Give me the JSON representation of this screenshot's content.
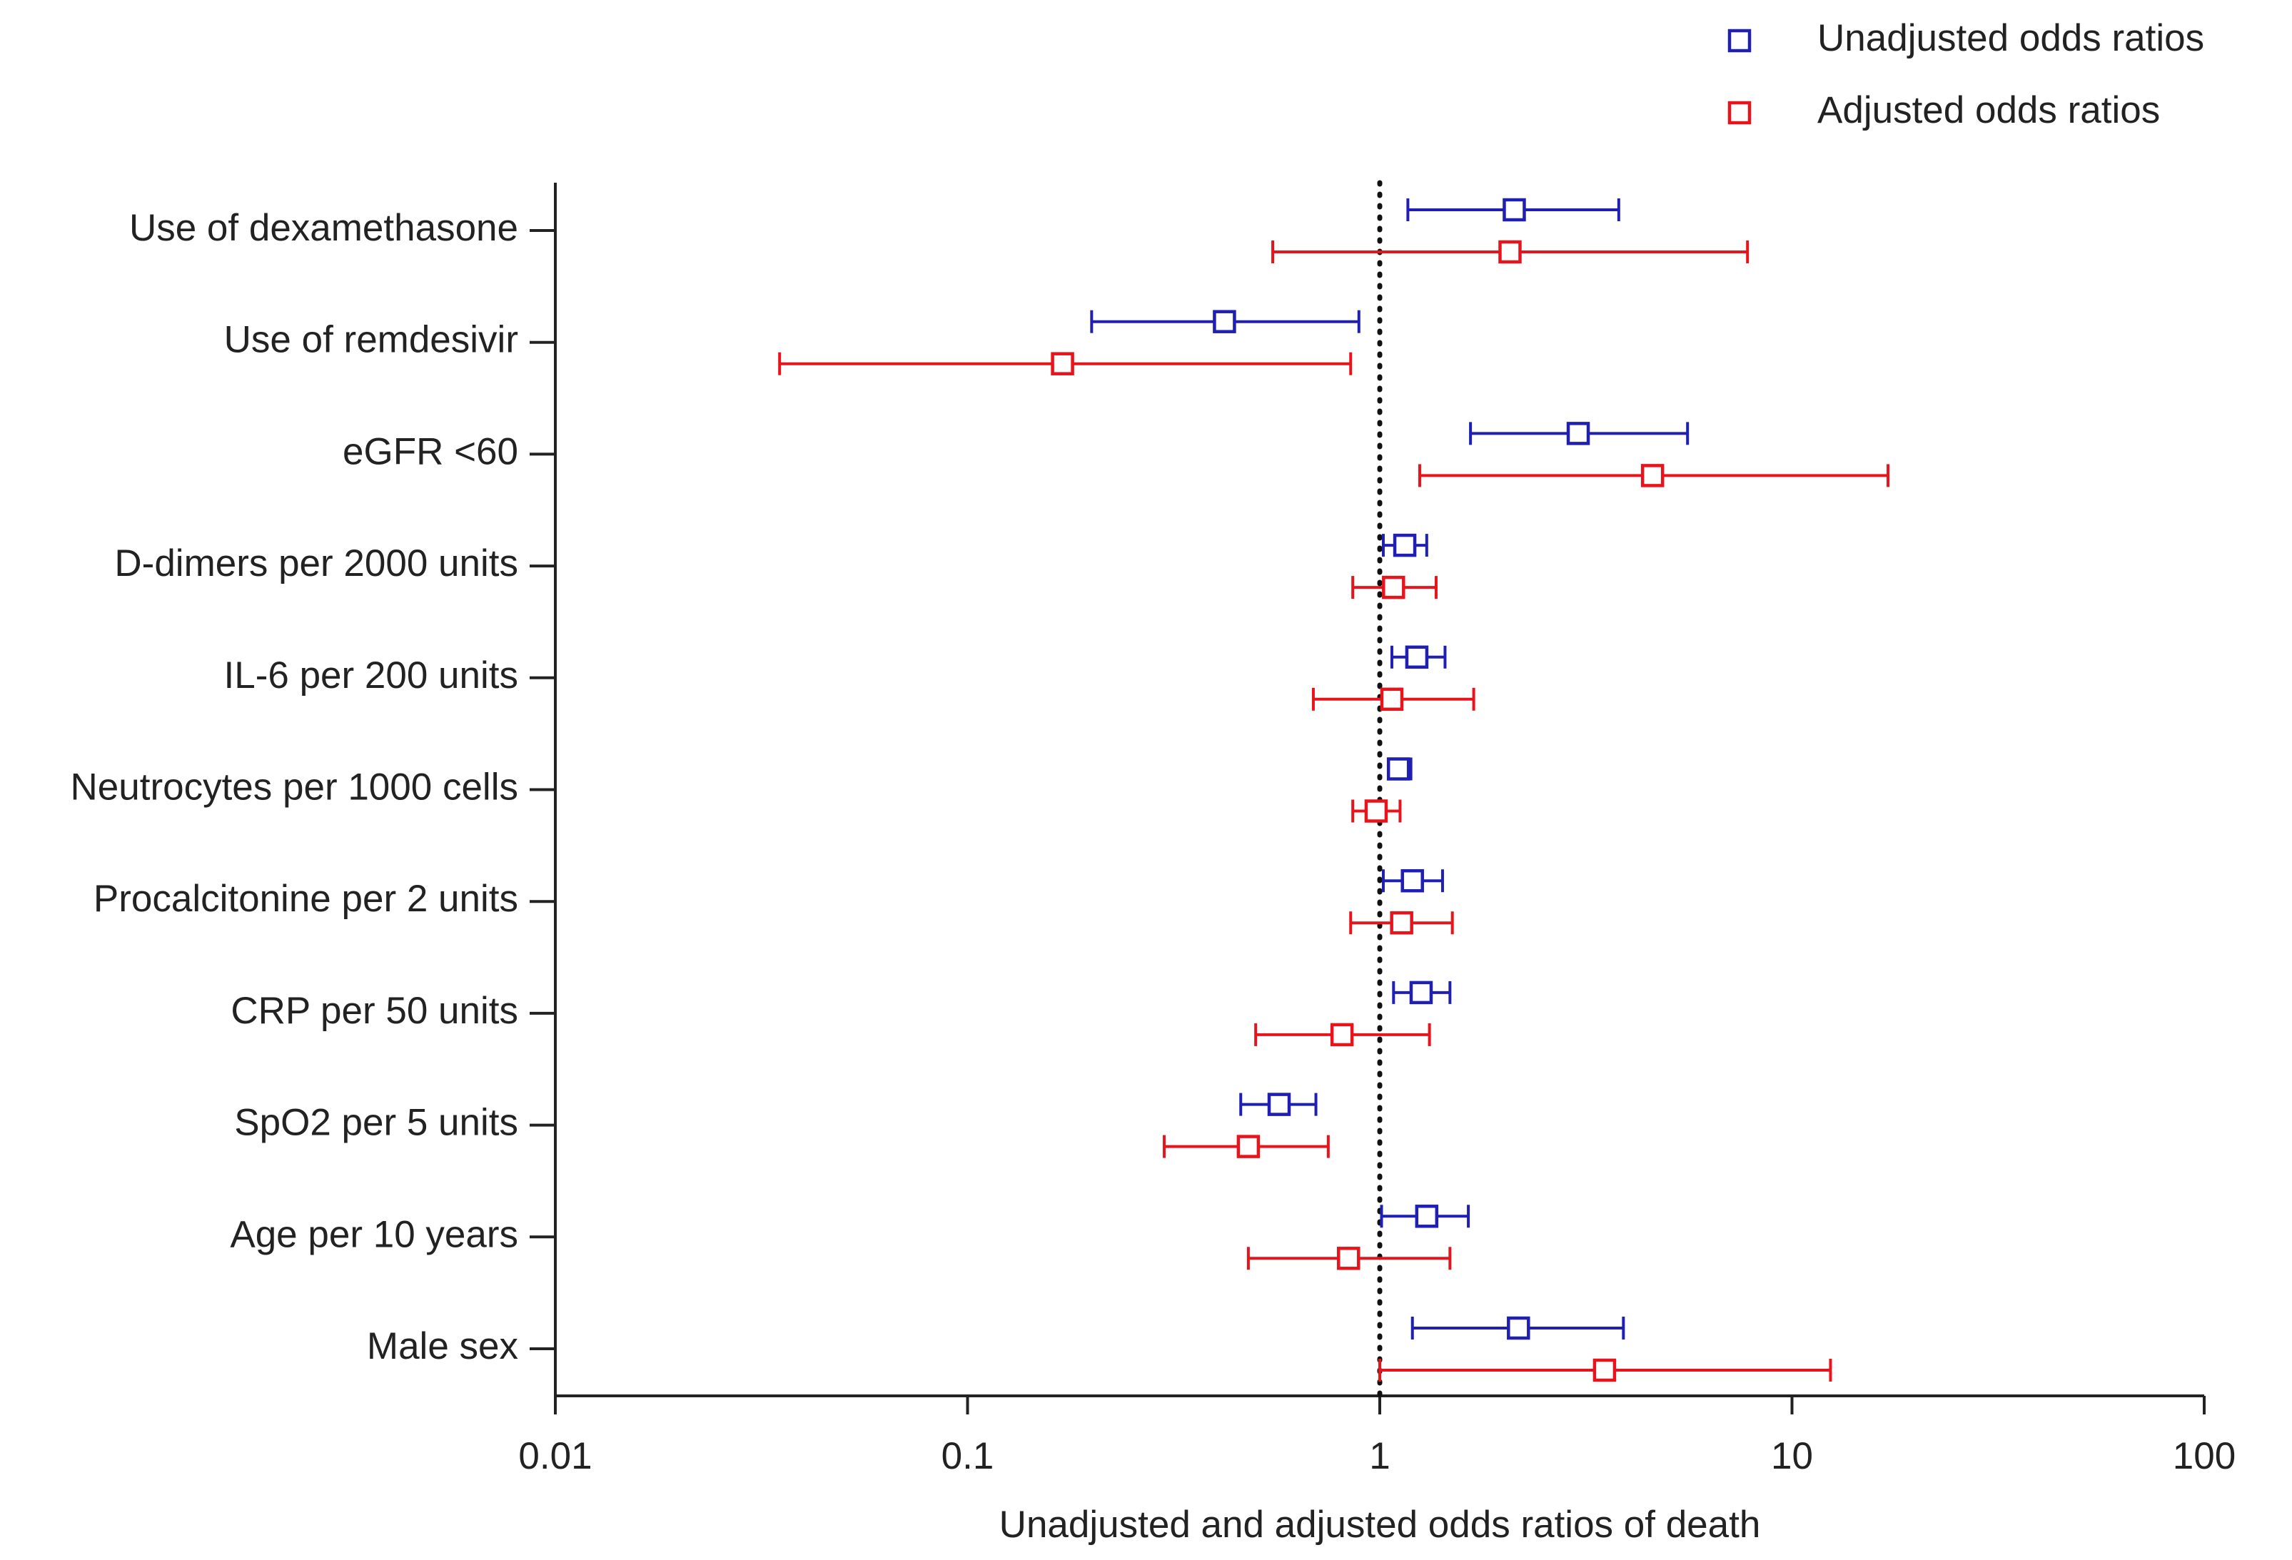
{
  "chart_data": {
    "type": "forest",
    "x_label": "Unadjusted and adjusted odds ratios of death",
    "categories": [
      "Use of dexamethasone",
      "Use of remdesivir",
      "eGFR <60",
      "D-dimers per 2000 units",
      "IL-6  per 200 units",
      "Neutrocytes per 1000 cells",
      "Procalcitonine per 2 units",
      "CRP per 50 units",
      "SpO2 per 5 units",
      "Age per 10 years",
      "Male sex"
    ],
    "series": [
      {
        "name": "Unadjusted odds ratios",
        "color": "#1f1fb4",
        "values": [
          2.12,
          0.42,
          3.03,
          1.15,
          1.23,
          1.11,
          1.2,
          1.26,
          0.57,
          1.3,
          2.17
        ],
        "lower": [
          1.17,
          0.2,
          1.66,
          1.02,
          1.07,
          1.05,
          1.02,
          1.08,
          0.46,
          1.01,
          1.2
        ],
        "upper": [
          3.8,
          0.89,
          5.58,
          1.3,
          1.44,
          1.19,
          1.42,
          1.48,
          0.7,
          1.64,
          3.9
        ]
      },
      {
        "name": "Adjusted odds ratios",
        "color": "#e8141c",
        "values": [
          2.07,
          0.17,
          4.59,
          1.08,
          1.07,
          0.98,
          1.13,
          0.81,
          0.48,
          0.84,
          3.51
        ],
        "lower": [
          0.55,
          0.035,
          1.25,
          0.86,
          0.69,
          0.86,
          0.85,
          0.5,
          0.3,
          0.48,
          1.0
        ],
        "upper": [
          7.8,
          0.85,
          17.1,
          1.37,
          1.69,
          1.12,
          1.5,
          1.32,
          0.75,
          1.48,
          12.4
        ]
      }
    ],
    "xlim": [
      0.01,
      100
    ],
    "xticks": [
      0.01,
      0.1,
      1,
      10,
      100
    ],
    "x_log": true,
    "reference_line": 1,
    "legend": "top-right"
  }
}
